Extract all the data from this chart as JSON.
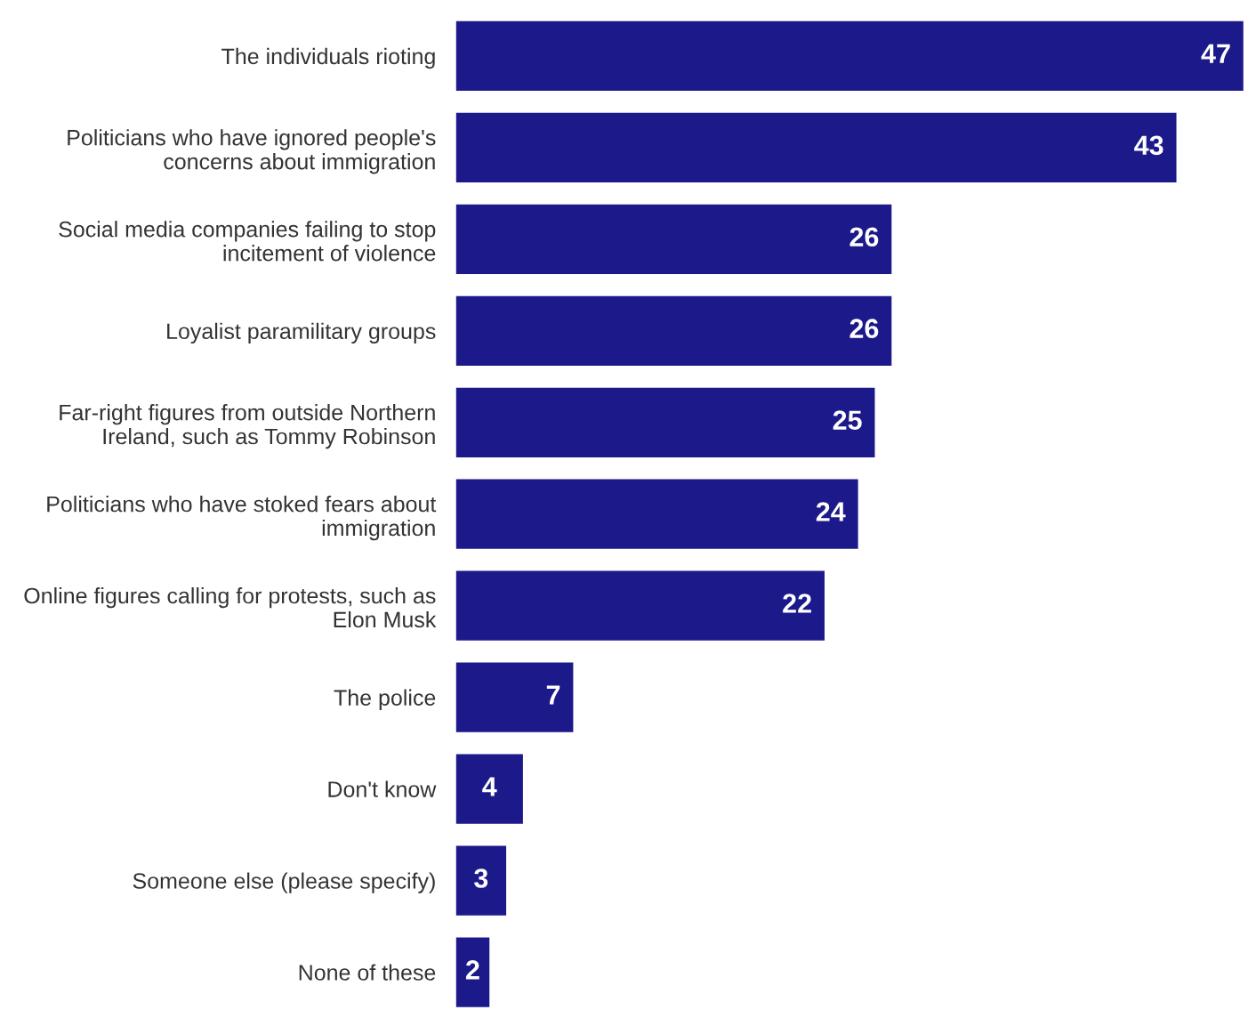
{
  "chart_data": {
    "type": "bar",
    "orientation": "horizontal",
    "categories": [
      "The individuals rioting",
      "Politicians who have ignored people's\nconcerns about immigration",
      "Social media companies failing to stop\nincitement of violence",
      "Loyalist paramilitary groups",
      "Far-right figures from outside Northern\nIreland, such as Tommy Robinson",
      "Politicians who have stoked fears about\nimmigration",
      "Online figures calling for protests, such as\nElon Musk",
      "The police",
      "Don't know",
      "Someone else (please specify)",
      "None of these"
    ],
    "values": [
      47,
      43,
      26,
      26,
      25,
      24,
      22,
      7,
      4,
      3,
      2
    ],
    "color": "#1c1a8a",
    "data_labels": true,
    "grid": false,
    "legend": false
  }
}
